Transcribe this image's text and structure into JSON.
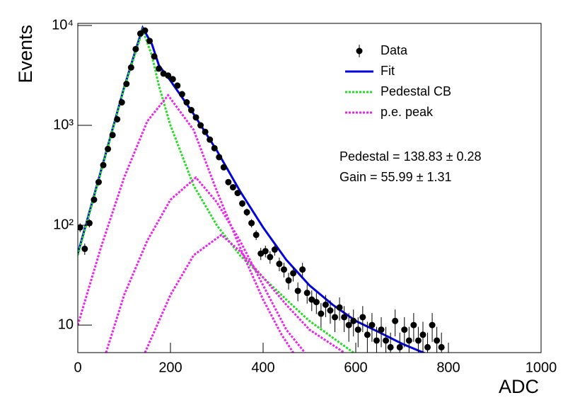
{
  "chart_data": {
    "type": "fit",
    "x_label": "ADC",
    "y_label": "Events",
    "xlim": [
      0,
      1000
    ],
    "xticks": [
      0,
      200,
      400,
      600,
      800,
      1000
    ],
    "ylim": [
      5.3,
      10500
    ],
    "log_y": true,
    "yticks": [
      {
        "value": 10,
        "label": "10"
      },
      {
        "value": 100,
        "label": "10²"
      },
      {
        "value": 1000,
        "label": "10³"
      },
      {
        "value": 10000,
        "label": "10⁴"
      }
    ],
    "legend": "top-right",
    "annotations": [
      "Pedestal = 138.83 ± 0.28",
      "Gain = 55.99 ± 1.31"
    ],
    "data": {
      "name": "Data",
      "color": "#000000",
      "x": [
        5,
        15,
        25,
        35,
        45,
        55,
        65,
        75,
        85,
        95,
        105,
        115,
        125,
        135,
        145,
        155,
        165,
        175,
        185,
        195,
        205,
        215,
        225,
        235,
        245,
        255,
        265,
        275,
        285,
        295,
        305,
        315,
        325,
        335,
        345,
        355,
        365,
        375,
        385,
        395,
        405,
        415,
        425,
        435,
        445,
        455,
        465,
        475,
        485,
        495,
        505,
        515,
        525,
        535,
        545,
        555,
        565,
        575,
        585,
        595,
        605,
        615,
        625,
        635,
        645,
        655,
        665,
        675,
        685,
        695,
        705,
        715,
        725,
        735,
        745,
        755,
        765,
        775,
        785
      ],
      "values": [
        95,
        58,
        105,
        180,
        270,
        400,
        580,
        800,
        1150,
        1700,
        2600,
        3800,
        5800,
        8300,
        8900,
        7000,
        4900,
        3700,
        3300,
        3150,
        2900,
        2500,
        2050,
        1700,
        1420,
        1200,
        1000,
        860,
        720,
        590,
        480,
        380,
        270,
        240,
        210,
        165,
        135,
        105,
        80,
        52,
        55,
        48,
        57,
        41,
        36,
        28,
        33,
        22,
        36,
        21,
        18,
        17,
        13,
        16,
        14,
        12,
        15,
        12,
        10,
        11,
        9,
        12,
        8,
        10,
        7,
        9,
        7,
        6,
        11,
        6,
        9,
        7,
        10,
        7,
        8,
        6,
        10,
        7,
        6
      ],
      "errors": [
        9.7,
        7.6,
        10.2,
        13.4,
        16.4,
        20,
        24.1,
        28.3,
        33.9,
        41.2,
        51,
        61.6,
        76.2,
        91.1,
        94.3,
        83.7,
        70,
        60.8,
        57.4,
        56.1,
        53.9,
        50,
        45.3,
        41.2,
        37.7,
        34.6,
        31.6,
        29.3,
        26.8,
        24.3,
        21.9,
        19.5,
        16.4,
        15.5,
        14.5,
        12.8,
        11.6,
        10.2,
        8.9,
        7.2,
        7.4,
        6.9,
        7.5,
        6.4,
        6,
        5.3,
        5.7,
        4.7,
        6,
        4.6,
        4.2,
        4.1,
        3.6,
        4,
        3.7,
        3.5,
        3.9,
        3.5,
        3.2,
        3.3,
        3,
        3.5,
        2.8,
        3.2,
        2.6,
        3,
        2.6,
        2.4,
        3.3,
        2.4,
        3,
        2.6,
        3.2,
        2.6,
        2.8,
        2.4,
        3.2,
        2.6,
        2.4
      ]
    },
    "curves": [
      {
        "name": "Fit",
        "color": "#0000dd",
        "style": "solid",
        "components": [
          {
            "x": [
              0,
              50,
              100,
              140,
              160,
              175,
              200,
              250,
              300,
              350,
              400,
              450,
              500,
              550,
              600,
              650,
              700,
              750
            ],
            "values": [
              52,
              350,
              2400,
              9500,
              6500,
              4000,
              2800,
              1300,
              560,
              220,
              95,
              45,
              25,
              16,
              11,
              8.5,
              6.5,
              5.2
            ]
          }
        ]
      },
      {
        "name": "Pedestal CB",
        "color": "#22dd22",
        "style": "dotted",
        "components": [
          {
            "x": [
              0,
              50,
              100,
              140,
              160,
              175,
              200,
              250,
              300,
              350,
              400,
              450,
              500,
              550,
              595
            ],
            "values": [
              50,
              340,
              2350,
              9000,
              5000,
              2500,
              1000,
              250,
              100,
              50,
              30,
              18,
              11,
              7.5,
              5.3
            ]
          }
        ]
      },
      {
        "name": "p.e. peak",
        "color": "#ee22ee",
        "style": "dotted",
        "components": [
          {
            "x": [
              0,
              50,
              100,
              150,
              195,
              250,
              300,
              350,
              400,
              440,
              465
            ],
            "values": [
              10,
              60,
              300,
              1100,
              2000,
              900,
              220,
              60,
              18,
              8,
              5.3
            ]
          },
          {
            "x": [
              61,
              100,
              150,
              200,
              255,
              300,
              350,
              400,
              450,
              490
            ],
            "values": [
              5.3,
              20,
              70,
              180,
              300,
              170,
              70,
              25,
              9,
              5.3
            ]
          },
          {
            "x": [
              145,
              200,
              250,
              310,
              350,
              400,
              450,
              500,
              575
            ],
            "values": [
              5.3,
              20,
              50,
              80,
              55,
              30,
              16,
              9,
              5.3
            ]
          }
        ]
      }
    ]
  }
}
